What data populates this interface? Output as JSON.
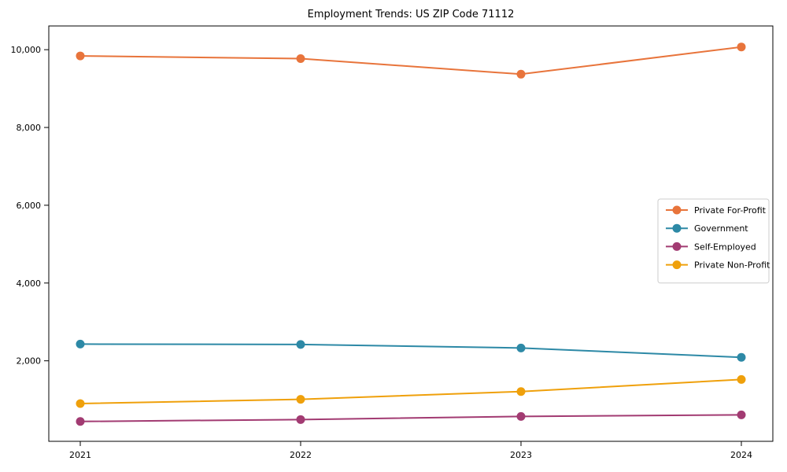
{
  "chart_data": {
    "type": "line",
    "title": "Employment Trends: US ZIP Code 71112",
    "xlabel": "",
    "ylabel": "",
    "categories": [
      "2021",
      "2022",
      "2023",
      "2024"
    ],
    "x": [
      2021,
      2022,
      2023,
      2024
    ],
    "series": [
      {
        "name": "Private For-Profit",
        "color": "#e8743b",
        "values": [
          9840,
          9770,
          9370,
          10070
        ]
      },
      {
        "name": "Government",
        "color": "#2d89a6",
        "values": [
          2430,
          2420,
          2330,
          2090
        ]
      },
      {
        "name": "Self-Employed",
        "color": "#a23b72",
        "values": [
          440,
          490,
          570,
          610
        ]
      },
      {
        "name": "Private Non-Profit",
        "color": "#efa00b",
        "values": [
          900,
          1010,
          1210,
          1520
        ]
      }
    ],
    "ylim": [
      -70,
      10610
    ],
    "yticks": [
      2000,
      4000,
      6000,
      8000,
      10000
    ],
    "ytick_labels": [
      "2,000",
      "4,000",
      "6,000",
      "8,000",
      "10,000"
    ],
    "grid": false,
    "legend_position": "center right",
    "plot_background": "#ffffff",
    "spine_color": "#000000",
    "legend_border_color": "#cccccc"
  }
}
